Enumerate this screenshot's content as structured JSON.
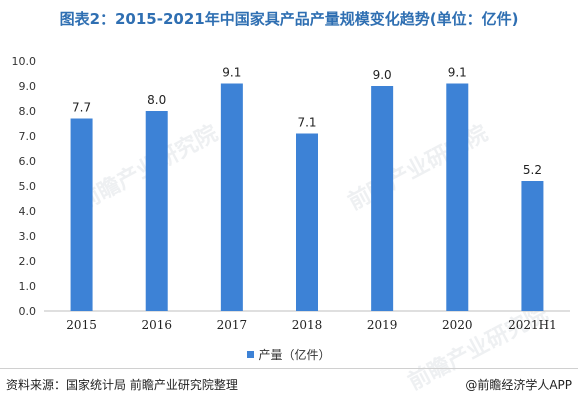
{
  "title": "图表2：2015-2021年中国家具产品产量规模变化趋势(单位：亿件)",
  "watermark": "前瞻产业研究院",
  "source": "资料来源：国家统计局 前瞻产业研究院整理",
  "brand": "@前瞻经济学人APP",
  "colors": {
    "bar": "#3d82d6",
    "title": "#2f6fb2"
  },
  "chart_data": {
    "type": "bar",
    "categories": [
      "2015",
      "2016",
      "2017",
      "2018",
      "2019",
      "2020",
      "2021H1"
    ],
    "series": [
      {
        "name": "产量（亿件）",
        "values": [
          7.7,
          8.0,
          9.1,
          7.1,
          9.0,
          9.1,
          5.2
        ]
      }
    ],
    "data_labels": [
      "7.7",
      "8.0",
      "9.1",
      "7.1",
      "9.0",
      "9.1",
      "5.2"
    ],
    "yticks": [
      "0.0",
      "1.0",
      "2.0",
      "3.0",
      "4.0",
      "5.0",
      "6.0",
      "7.0",
      "8.0",
      "9.0",
      "10.0"
    ],
    "ylim": [
      0,
      10
    ],
    "grid": false,
    "legend_position": "bottom"
  }
}
